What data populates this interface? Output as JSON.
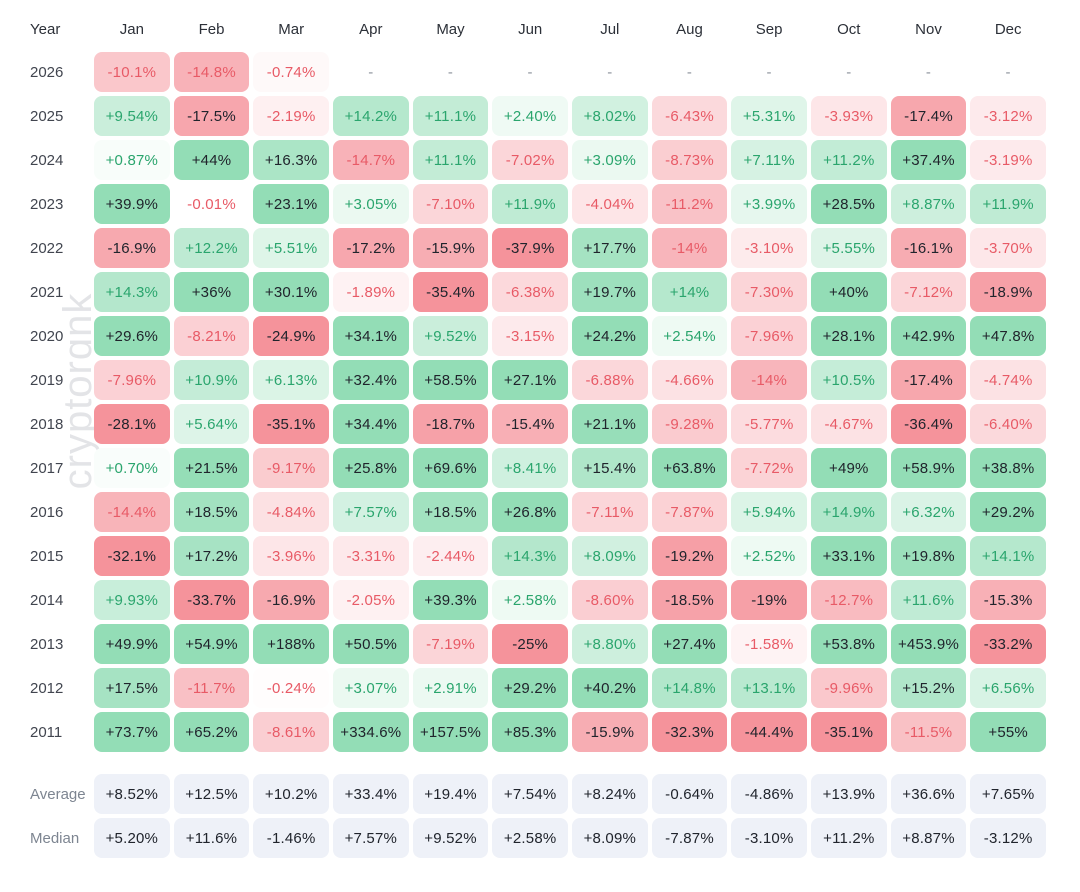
{
  "page": {
    "background": "#ffffff",
    "watermark": "cryptorɑnk"
  },
  "chart_data": {
    "type": "heatmap",
    "row_header": "Year",
    "columns": [
      "Jan",
      "Feb",
      "Mar",
      "Apr",
      "May",
      "Jun",
      "Jul",
      "Aug",
      "Sep",
      "Oct",
      "Nov",
      "Dec"
    ],
    "rows": [
      {
        "label": "2026",
        "values": [
          "-10.1%",
          "-14.8%",
          "-0.74%",
          "-",
          "-",
          "-",
          "-",
          "-",
          "-",
          "-",
          "-",
          "-"
        ]
      },
      {
        "label": "2025",
        "values": [
          "+9.54%",
          "-17.5%",
          "-2.19%",
          "+14.2%",
          "+11.1%",
          "+2.40%",
          "+8.02%",
          "-6.43%",
          "+5.31%",
          "-3.93%",
          "-17.4%",
          "-3.12%"
        ]
      },
      {
        "label": "2024",
        "values": [
          "+0.87%",
          "+44%",
          "+16.3%",
          "-14.7%",
          "+11.1%",
          "-7.02%",
          "+3.09%",
          "-8.73%",
          "+7.11%",
          "+11.2%",
          "+37.4%",
          "-3.19%"
        ]
      },
      {
        "label": "2023",
        "values": [
          "+39.9%",
          "-0.01%",
          "+23.1%",
          "+3.05%",
          "-7.10%",
          "+11.9%",
          "-4.04%",
          "-11.2%",
          "+3.99%",
          "+28.5%",
          "+8.87%",
          "+11.9%"
        ]
      },
      {
        "label": "2022",
        "values": [
          "-16.9%",
          "+12.2%",
          "+5.51%",
          "-17.2%",
          "-15.9%",
          "-37.9%",
          "+17.7%",
          "-14%",
          "-3.10%",
          "+5.55%",
          "-16.1%",
          "-3.70%"
        ]
      },
      {
        "label": "2021",
        "values": [
          "+14.3%",
          "+36%",
          "+30.1%",
          "-1.89%",
          "-35.4%",
          "-6.38%",
          "+19.7%",
          "+14%",
          "-7.30%",
          "+40%",
          "-7.12%",
          "-18.9%"
        ]
      },
      {
        "label": "2020",
        "values": [
          "+29.6%",
          "-8.21%",
          "-24.9%",
          "+34.1%",
          "+9.52%",
          "-3.15%",
          "+24.2%",
          "+2.54%",
          "-7.96%",
          "+28.1%",
          "+42.9%",
          "+47.8%"
        ]
      },
      {
        "label": "2019",
        "values": [
          "-7.96%",
          "+10.9%",
          "+6.13%",
          "+32.4%",
          "+58.5%",
          "+27.1%",
          "-6.88%",
          "-4.66%",
          "-14%",
          "+10.5%",
          "-17.4%",
          "-4.74%"
        ]
      },
      {
        "label": "2018",
        "values": [
          "-28.1%",
          "+5.64%",
          "-35.1%",
          "+34.4%",
          "-18.7%",
          "-15.4%",
          "+21.1%",
          "-9.28%",
          "-5.77%",
          "-4.67%",
          "-36.4%",
          "-6.40%"
        ]
      },
      {
        "label": "2017",
        "values": [
          "+0.70%",
          "+21.5%",
          "-9.17%",
          "+25.8%",
          "+69.6%",
          "+8.41%",
          "+15.4%",
          "+63.8%",
          "-7.72%",
          "+49%",
          "+58.9%",
          "+38.8%"
        ]
      },
      {
        "label": "2016",
        "values": [
          "-14.4%",
          "+18.5%",
          "-4.84%",
          "+7.57%",
          "+18.5%",
          "+26.8%",
          "-7.11%",
          "-7.87%",
          "+5.94%",
          "+14.9%",
          "+6.32%",
          "+29.2%"
        ]
      },
      {
        "label": "2015",
        "values": [
          "-32.1%",
          "+17.2%",
          "-3.96%",
          "-3.31%",
          "-2.44%",
          "+14.3%",
          "+8.09%",
          "-19.2%",
          "+2.52%",
          "+33.1%",
          "+19.8%",
          "+14.1%"
        ]
      },
      {
        "label": "2014",
        "values": [
          "+9.93%",
          "-33.7%",
          "-16.9%",
          "-2.05%",
          "+39.3%",
          "+2.58%",
          "-8.60%",
          "-18.5%",
          "-19%",
          "-12.7%",
          "+11.6%",
          "-15.3%"
        ]
      },
      {
        "label": "2013",
        "values": [
          "+49.9%",
          "+54.9%",
          "+188%",
          "+50.5%",
          "-7.19%",
          "-25%",
          "+8.80%",
          "+27.4%",
          "-1.58%",
          "+53.8%",
          "+453.9%",
          "-33.2%"
        ]
      },
      {
        "label": "2012",
        "values": [
          "+17.5%",
          "-11.7%",
          "-0.24%",
          "+3.07%",
          "+2.91%",
          "+29.2%",
          "+40.2%",
          "+14.8%",
          "+13.1%",
          "-9.96%",
          "+15.2%",
          "+6.56%"
        ]
      },
      {
        "label": "2011",
        "values": [
          "+73.7%",
          "+65.2%",
          "-8.61%",
          "+334.6%",
          "+157.5%",
          "+85.3%",
          "-15.9%",
          "-32.3%",
          "-44.4%",
          "-35.1%",
          "-11.5%",
          "+55%"
        ]
      }
    ],
    "summary_rows": [
      {
        "label": "Average",
        "values": [
          "+8.52%",
          "+12.5%",
          "+10.2%",
          "+33.4%",
          "+19.4%",
          "+7.54%",
          "+8.24%",
          "-0.64%",
          "-4.86%",
          "+13.9%",
          "+36.6%",
          "+7.65%"
        ]
      },
      {
        "label": "Median",
        "values": [
          "+5.20%",
          "+11.6%",
          "-1.46%",
          "+7.57%",
          "+9.52%",
          "+2.58%",
          "+8.09%",
          "-7.87%",
          "-3.10%",
          "+11.2%",
          "+8.87%",
          "-3.12%"
        ]
      }
    ],
    "colors": {
      "positive_bg_max": "#93ddb6",
      "negative_bg_max": "#f5939b",
      "positive_text": "#2aa56d",
      "negative_text": "#e85a66",
      "dark_text": "#20242c",
      "header_text": "#2c3038",
      "year_label_text": "#41454f",
      "summary_label_text": "#7d8591",
      "summary_value_text": "#20242c",
      "summary_bg": "#eef1f8",
      "dash_text": "#8d939c",
      "watermark_text": "#e3e4e7"
    }
  }
}
